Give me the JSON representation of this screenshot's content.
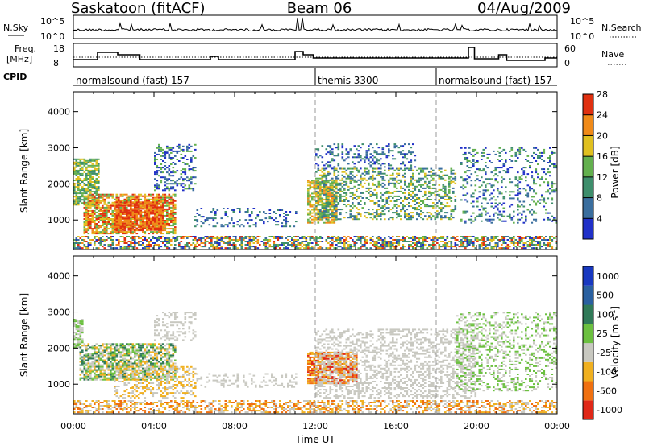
{
  "header": {
    "station": "Saskatoon (fitACF)",
    "beam": "Beam 06",
    "date": "04/Aug/2009"
  },
  "labels": {
    "nsky": "N.Sky",
    "freq": "Freq.",
    "mhz": "[MHz]",
    "cpid": "CPID",
    "nsearch": "N.Search",
    "nave": "Nave",
    "nsky_ticks": [
      "10^5",
      "10^0"
    ],
    "freq_ticks": [
      "18",
      "8"
    ],
    "nave_ticks": [
      "60",
      "0"
    ]
  },
  "cpid_segments": [
    {
      "label": "normalsound (fast) 157",
      "start_h": 0
    },
    {
      "label": "themis 3300",
      "start_h": 12
    },
    {
      "label": "normalsound (fast) 157",
      "start_h": 18
    }
  ],
  "chart_data": [
    {
      "type": "heatmap",
      "title": "Power",
      "ylabel": "Slant Range [km]",
      "xlabel": "",
      "xlim": [
        0,
        24
      ],
      "ylim": [
        180,
        4550
      ],
      "yticks": [
        1000,
        2000,
        3000,
        4000
      ],
      "colorbar_label": "Power [dB]",
      "colorbar_ticks": [
        "4",
        "8",
        "12",
        "16",
        "20",
        "24",
        "28"
      ],
      "colors": [
        "#2030c8",
        "#3a6e9e",
        "#3e8e6c",
        "#63b04e",
        "#e0c020",
        "#f08a18",
        "#e03010"
      ]
    },
    {
      "type": "heatmap",
      "title": "Velocity",
      "ylabel": "Slant Range [km]",
      "xlabel": "Time UT",
      "xlim": [
        0,
        24
      ],
      "ylim": [
        180,
        4550
      ],
      "yticks": [
        1000,
        2000,
        3000,
        4000
      ],
      "xticks": [
        "00:00",
        "04:00",
        "08:00",
        "12:00",
        "16:00",
        "20:00",
        "00:00"
      ],
      "colorbar_label": "Velocity [m s^-1]",
      "colorbar_ticks": [
        "1000",
        "500",
        "100",
        "25",
        "-25",
        "-100",
        "-500",
        "-1000"
      ],
      "colors": [
        "#1838c0",
        "#2a60a0",
        "#307a58",
        "#6cc040",
        "#c8c8c0",
        "#f0b020",
        "#f07010",
        "#e02818"
      ]
    }
  ]
}
